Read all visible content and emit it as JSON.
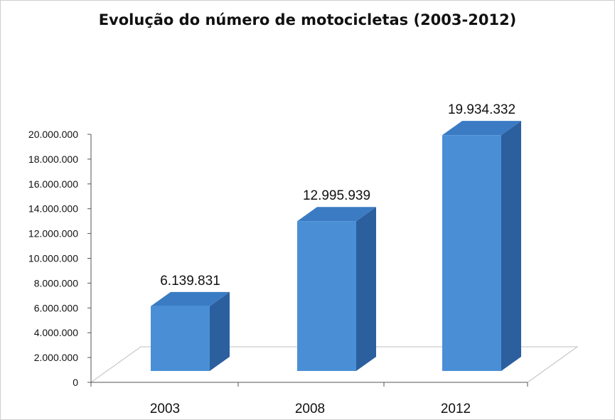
{
  "chart_data": {
    "type": "bar",
    "title": "Evolução do número de motocicletas (2003-2012)",
    "categories": [
      "2003",
      "2008",
      "2012"
    ],
    "values": [
      6139831,
      12995939,
      19934332
    ],
    "data_labels": [
      "6.139.831",
      "12.995.939",
      "19.934.332"
    ],
    "yticks": [
      0,
      2000000,
      4000000,
      6000000,
      8000000,
      10000000,
      12000000,
      14000000,
      16000000,
      18000000,
      20000000
    ],
    "ytick_labels": [
      "0",
      "2.000.000",
      "4.000.000",
      "6.000.000",
      "8.000.000",
      "10.000.000",
      "12.000.000",
      "14.000.000",
      "16.000.000",
      "18.000.000",
      "20.000.000"
    ],
    "ylim": [
      0,
      20000000
    ],
    "xlabel": "",
    "ylabel": "",
    "grid": false,
    "legend": "none",
    "style": "3d-column",
    "colors": {
      "bar_front": "#4a8fd6",
      "bar_side": "#2c5f9e",
      "bar_top": "#3a7bc4",
      "floor": "#ffffff",
      "axis": "#555555"
    }
  }
}
